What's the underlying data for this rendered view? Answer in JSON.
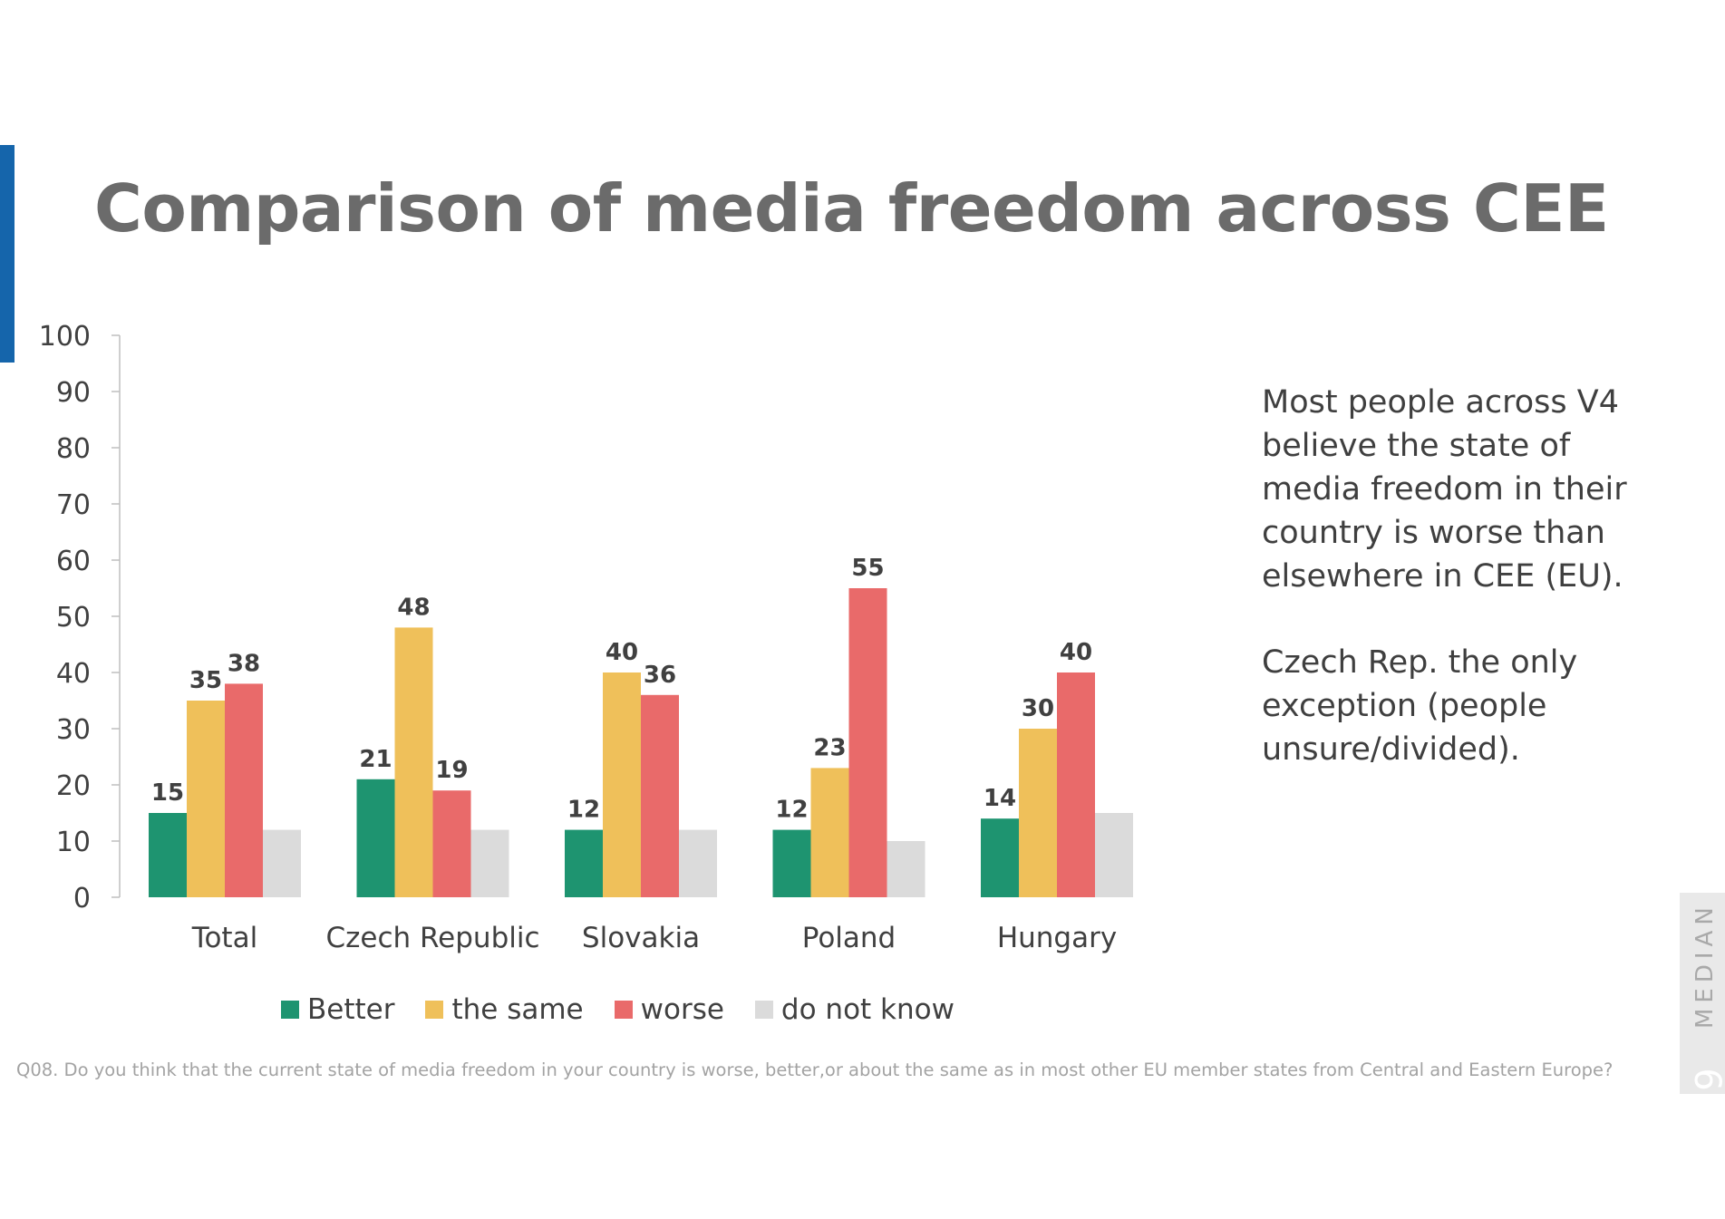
{
  "title": "Comparison of media freedom across CEE",
  "note": {
    "paragraph1": "Most people across V4 believe the state of media freedom in their country is worse than elsewhere in CEE (EU).",
    "paragraph2": "Czech Rep. the only exception (people unsure/divided)."
  },
  "footnote": "Q08. Do you think that the current state of media freedom in your country is worse, better,or about the same as in most other EU member states from Central and Eastern Europe?",
  "brand": {
    "name": "MEDIAN",
    "page_number": "9"
  },
  "colors": {
    "accent": "#1565ab",
    "title": "#6b6b6b"
  },
  "chart_data": {
    "type": "bar",
    "categories": [
      "Total",
      "Czech Republic",
      "Slovakia",
      "Poland",
      "Hungary"
    ],
    "ylim": [
      0,
      100
    ],
    "yticks": [
      0,
      10,
      20,
      30,
      40,
      50,
      60,
      70,
      80,
      90,
      100
    ],
    "grid": false,
    "legend_position": "bottom",
    "series": [
      {
        "name": "Better",
        "color": "#1e9470",
        "values": [
          15,
          21,
          12,
          12,
          14
        ],
        "labels": [
          "15",
          "21",
          "12",
          "12",
          "14"
        ]
      },
      {
        "name": "the same",
        "color": "#efc05a",
        "values": [
          35,
          48,
          40,
          23,
          30
        ],
        "labels": [
          "35",
          "48",
          "40",
          "23",
          "30"
        ]
      },
      {
        "name": "worse",
        "color": "#e96a6a",
        "values": [
          38,
          19,
          36,
          55,
          40
        ],
        "labels": [
          "38",
          "19",
          "36",
          "55",
          "40"
        ]
      },
      {
        "name": "do not know",
        "color": "#dbdbdb",
        "values": [
          12,
          12,
          12,
          10,
          15
        ],
        "labels": []
      }
    ]
  }
}
